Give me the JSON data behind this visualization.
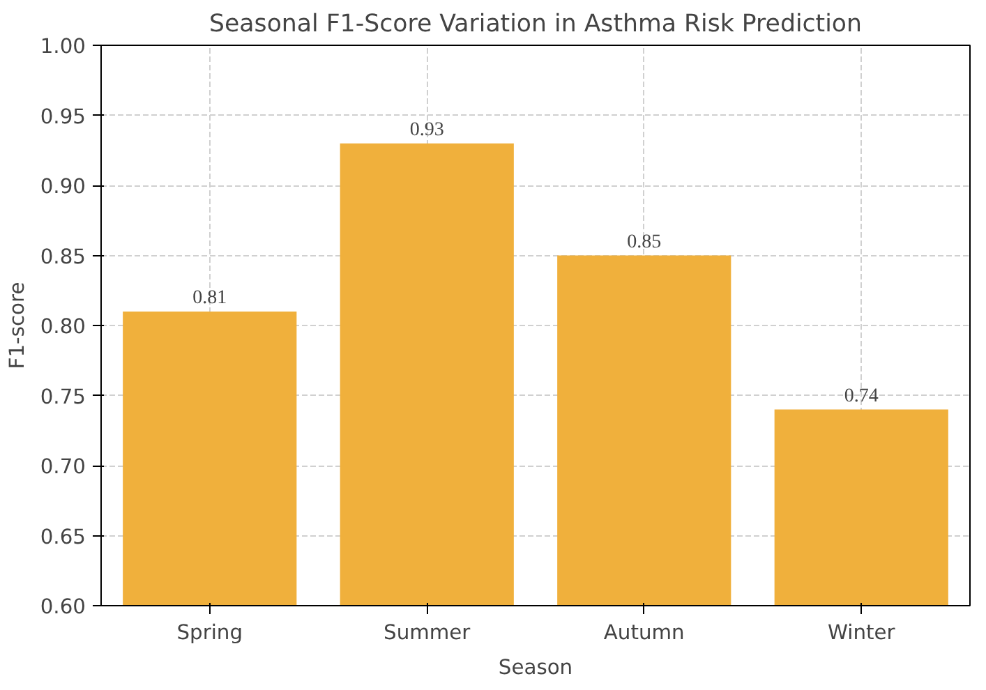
{
  "chart_data": {
    "type": "bar",
    "title": "Seasonal F1-Score Variation in Asthma Risk Prediction",
    "xlabel": "Season",
    "ylabel": "F1-score",
    "categories": [
      "Spring",
      "Summer",
      "Autumn",
      "Winter"
    ],
    "values": [
      0.81,
      0.93,
      0.85,
      0.74
    ],
    "color": "#f0b03c",
    "ylim": [
      0.6,
      1.0
    ],
    "yticks": [
      {
        "value": 0.6,
        "label": "0.60"
      },
      {
        "value": 0.65,
        "label": "0.65"
      },
      {
        "value": 0.7,
        "label": "0.70"
      },
      {
        "value": 0.75,
        "label": "0.75"
      },
      {
        "value": 0.8,
        "label": "0.80"
      },
      {
        "value": 0.85,
        "label": "0.85"
      },
      {
        "value": 0.9,
        "label": "0.90"
      },
      {
        "value": 0.95,
        "label": "0.95"
      },
      {
        "value": 1.0,
        "label": "1.00"
      }
    ],
    "grid": true,
    "data_labels": true
  }
}
